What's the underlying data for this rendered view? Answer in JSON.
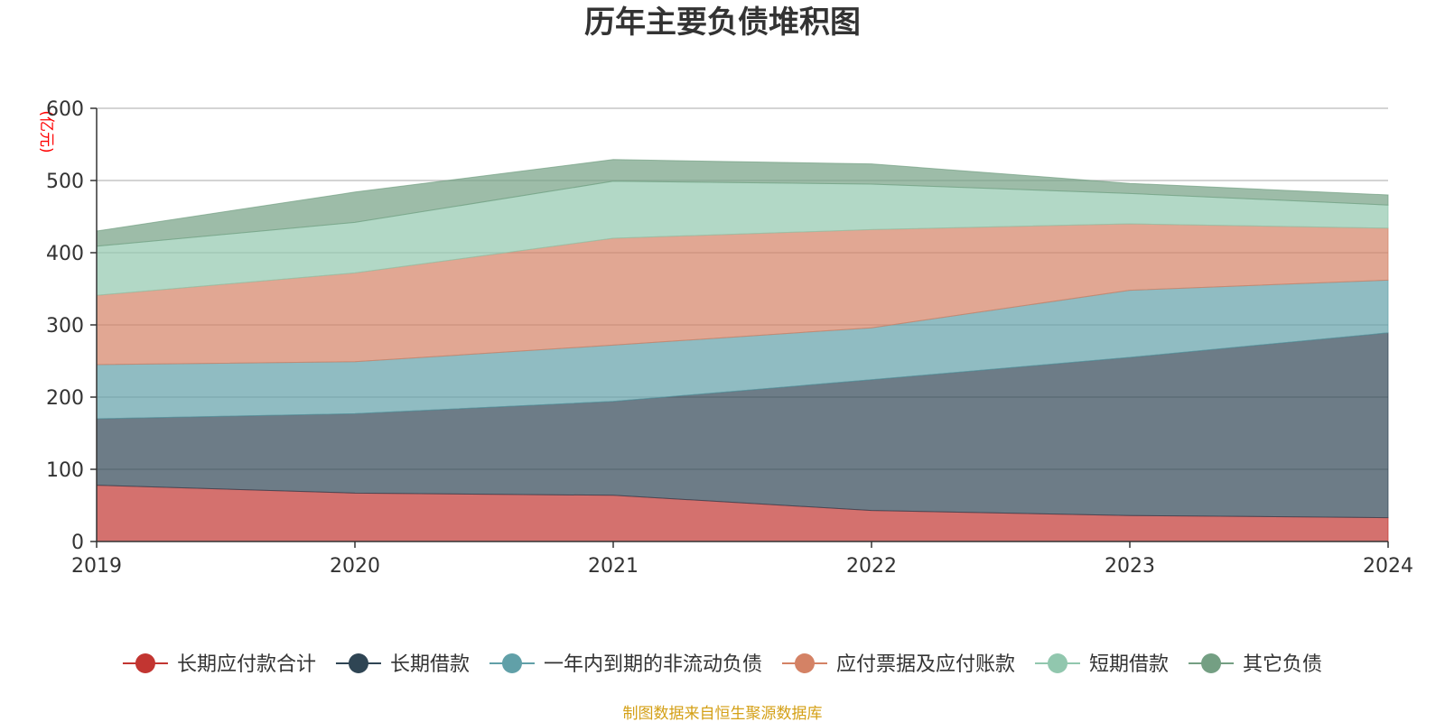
{
  "chart_data": {
    "type": "area",
    "stacked": true,
    "title": "历年主要负债堆积图",
    "unit": "(亿元)",
    "categories": [
      "2019",
      "2020",
      "2021",
      "2022",
      "2023",
      "2024"
    ],
    "ylim": [
      0,
      600
    ],
    "yticks": [
      "0",
      "100",
      "200",
      "300",
      "400",
      "500",
      "600"
    ],
    "grid": true,
    "legend_position": "bottom",
    "series": [
      {
        "name": "长期应付款合计",
        "color": "#c23531",
        "values": [
          78,
          67,
          64,
          43,
          36,
          33
        ]
      },
      {
        "name": "长期借款",
        "color": "#2f4554",
        "values": [
          92,
          110,
          130,
          181,
          219,
          256
        ]
      },
      {
        "name": "一年内到期的非流动负债",
        "color": "#61a0a8",
        "values": [
          75,
          72,
          78,
          72,
          93,
          73
        ]
      },
      {
        "name": "应付票据及应付账款",
        "color": "#d48265",
        "values": [
          96,
          123,
          148,
          136,
          92,
          72
        ]
      },
      {
        "name": "短期借款",
        "color": "#91c7ae",
        "values": [
          68,
          70,
          79,
          63,
          42,
          32
        ]
      },
      {
        "name": "其它负债",
        "color": "#749f83",
        "values": [
          21,
          42,
          30,
          28,
          14,
          14
        ]
      }
    ]
  },
  "source_note": "制图数据来自恒生聚源数据库"
}
